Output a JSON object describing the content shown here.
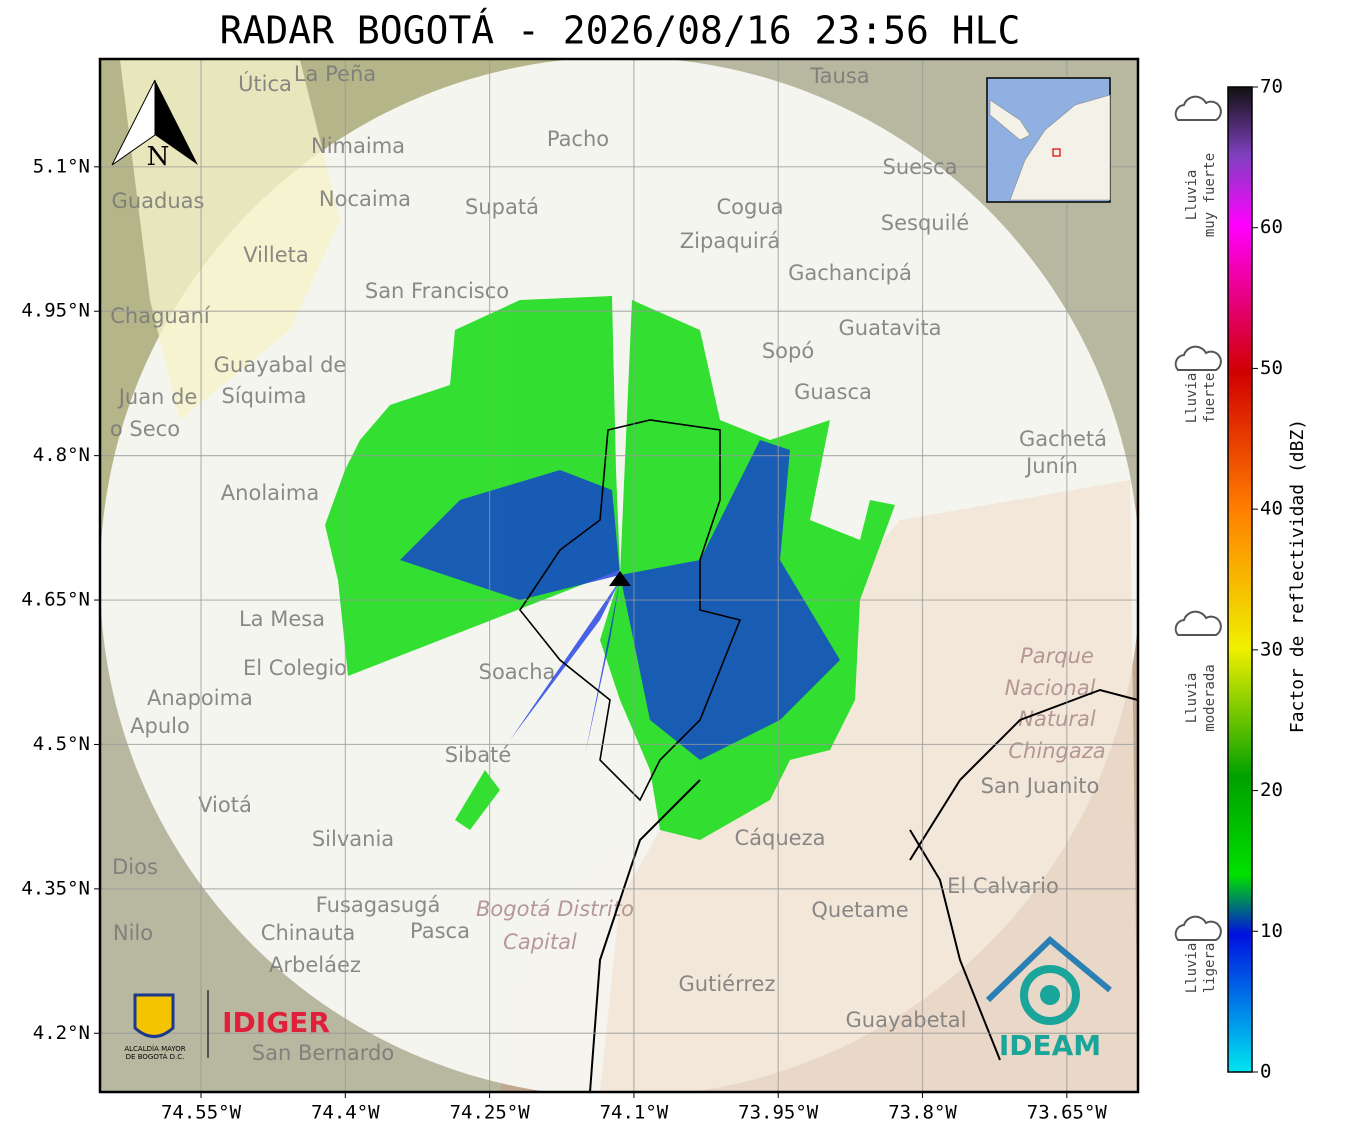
{
  "title": "RADAR BOGOTÁ - 2026/08/16 23:56 HLC",
  "map": {
    "xlim": [
      -74.655,
      -73.576
    ],
    "ylim": [
      4.139,
      5.212
    ],
    "xticks": [
      {
        "value": -74.55,
        "label": "74.55°W"
      },
      {
        "value": -74.4,
        "label": "74.4°W"
      },
      {
        "value": -74.25,
        "label": "74.25°W"
      },
      {
        "value": -74.1,
        "label": "74.1°W"
      },
      {
        "value": -73.95,
        "label": "73.95°W"
      },
      {
        "value": -73.8,
        "label": "73.8°W"
      },
      {
        "value": -73.65,
        "label": "73.65°W"
      }
    ],
    "yticks": [
      {
        "value": 5.1,
        "label": "5.1°N"
      },
      {
        "value": 4.95,
        "label": "4.95°N"
      },
      {
        "value": 4.8,
        "label": "4.8°N"
      },
      {
        "value": 4.65,
        "label": "4.65°N"
      },
      {
        "value": 4.5,
        "label": "4.5°N"
      },
      {
        "value": 4.35,
        "label": "4.35°N"
      },
      {
        "value": 4.2,
        "label": "4.2°N"
      }
    ],
    "north": "N",
    "places": [
      "Útica",
      "La Peña",
      "Tausa",
      "Pacho",
      "Nimaima",
      "Suesca",
      "Guaduas",
      "Nocaima",
      "Supatá",
      "Cogua",
      "Sesquilé",
      "Zipaquirá",
      "Villeta",
      "Gachancipá",
      "San Francisco",
      "Chaguaní",
      "Guatavita",
      "Sopó",
      "Guayabal de",
      "Síquima",
      "Guasca",
      "Juan de",
      "o Seco",
      "Gachetá",
      "Junín",
      "Anolaima",
      "La Mesa",
      "El Colegio",
      "Anapoima",
      "Soacha",
      "Apulo",
      "Sibaté",
      "San Juanito",
      "Viotá",
      "Cáqueza",
      "Silvania",
      "Dios",
      "El Calvario",
      "Fusagasugá",
      "Quetame",
      "Nilo",
      "Chinauta",
      "Pasca",
      "Arbeláez",
      "Gutiérrez",
      "Guayabetal",
      "San Bernardo"
    ],
    "parks": [
      "Parque",
      "Nacional",
      "Natural",
      "Chingaza",
      "Bogotá Distrito",
      "Capital"
    ]
  },
  "colorbar": {
    "label": "Factor de reflectividad (dBZ)",
    "clim": [
      0,
      70
    ],
    "ticks": [
      0,
      10,
      20,
      30,
      40,
      50,
      60,
      70
    ]
  },
  "categories": [
    [
      "Lluvia",
      "muy fuerte"
    ],
    [
      "Lluvia",
      "fuerte"
    ],
    [
      "Lluvia",
      "moderada"
    ],
    [
      "Lluvia",
      "ligera"
    ]
  ],
  "logos": {
    "alcaldia": [
      "ALCALDÍA MAYOR",
      "DE BOGOTÁ D.C."
    ],
    "idiger": "IDIGER",
    "ideam": "IDEAM"
  }
}
